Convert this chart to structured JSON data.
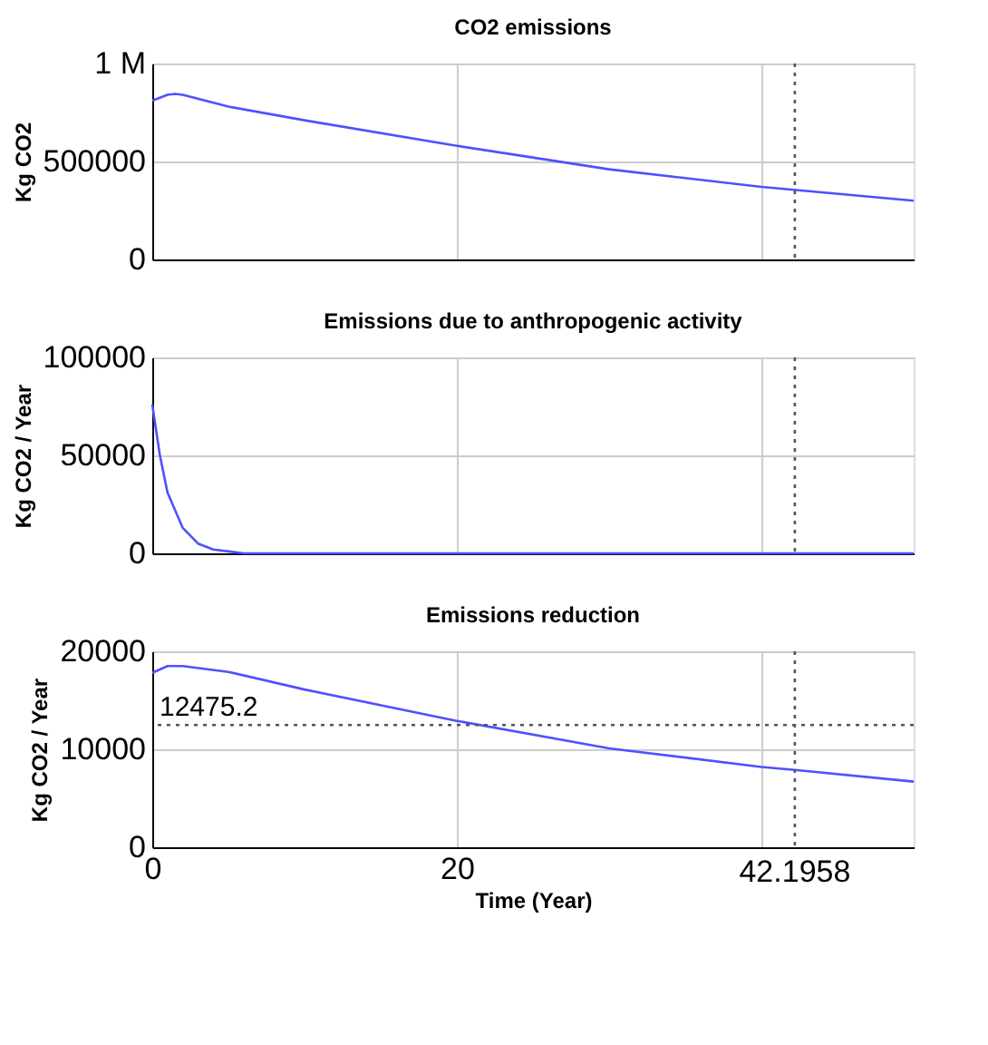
{
  "chart_data": [
    {
      "type": "line",
      "title": "CO2 emissions",
      "ylabel": "Kg CO2",
      "x": [
        0,
        1,
        1.5,
        2,
        5,
        10,
        20,
        30,
        40,
        50
      ],
      "series": [
        {
          "color": "#5050ff",
          "values": [
            810000,
            840000,
            845000,
            840000,
            780000,
            710000,
            580000,
            460000,
            370000,
            300000
          ]
        }
      ],
      "xlim": [
        0,
        50
      ],
      "xticks": [
        0,
        20,
        40
      ],
      "ylim": [
        0,
        1000000
      ],
      "yticks": [
        0,
        500000,
        {
          "value": 1000000,
          "label": "1 M"
        }
      ],
      "grid": true,
      "tick_labels": "y",
      "line_style": "solid",
      "marker": "none",
      "ref_lines": [
        {
          "axis": "x",
          "value": 42.1958,
          "label": null,
          "color": "#555555",
          "line_style": "dotted"
        }
      ]
    },
    {
      "type": "line",
      "title": "Emissions due to anthropogenic activity",
      "ylabel": "Kg CO2 / Year",
      "x": [
        0,
        0.5,
        1,
        2,
        3,
        4,
        5,
        6,
        8,
        20,
        50
      ],
      "series": [
        {
          "color": "#5050ff",
          "values": [
            76000,
            50000,
            31000,
            13000,
            5000,
            2000,
            1000,
            0,
            0,
            0,
            0
          ]
        }
      ],
      "xlim": [
        0,
        50
      ],
      "xticks": [
        0,
        20,
        40
      ],
      "ylim": [
        0,
        100000
      ],
      "yticks": [
        0,
        50000,
        100000
      ],
      "grid": true,
      "tick_labels": "y",
      "line_style": "solid",
      "marker": "none",
      "ref_lines": [
        {
          "axis": "x",
          "value": 42.1958,
          "label": null,
          "color": "#555555",
          "line_style": "dotted"
        }
      ]
    },
    {
      "type": "line",
      "title": "Emissions reduction",
      "ylabel": "Kg CO2 / Year",
      "xlabel": "Time (Year)",
      "x": [
        0,
        1,
        2,
        5,
        10,
        20,
        30,
        40,
        42.1958,
        50
      ],
      "series": [
        {
          "color": "#5050ff",
          "values": [
            17800,
            18500,
            18500,
            17900,
            16100,
            12900,
            10100,
            8200,
            7900,
            6700
          ]
        }
      ],
      "xlim": [
        0,
        50
      ],
      "xticks": [
        0,
        20,
        {
          "value": 40,
          "label": null
        }
      ],
      "ylim": [
        0,
        20000
      ],
      "yticks": [
        0,
        10000,
        20000
      ],
      "grid": true,
      "line_style": "solid",
      "marker": "none",
      "ref_lines": [
        {
          "axis": "x",
          "value": 42.1958,
          "label": "42.1958",
          "color": "#555555",
          "line_style": "dotted"
        },
        {
          "axis": "y",
          "value": 12475.2,
          "label": "12475.2",
          "color": "#555555",
          "line_style": "dotted"
        }
      ]
    }
  ]
}
